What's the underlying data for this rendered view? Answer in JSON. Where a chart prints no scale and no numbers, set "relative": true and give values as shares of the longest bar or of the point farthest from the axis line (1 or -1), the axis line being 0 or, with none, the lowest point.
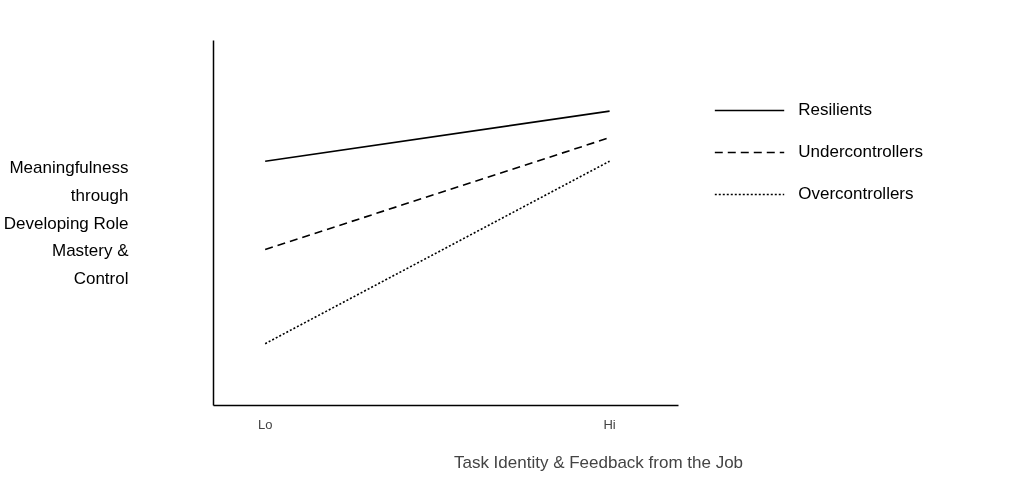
{
  "chart_data": {
    "type": "line",
    "relative": true,
    "xlabel": "Task Identity & Feedback from the Job",
    "ylabel": "Meaningfulness through Developing Role Mastery & Control",
    "categories": [
      "Lo",
      "Hi"
    ],
    "grid": false,
    "legend": "top right",
    "marker": "none",
    "series": [
      {
        "name": "Resilients",
        "color": "#000000",
        "line_style": "solid",
        "values": [
          0.83,
          1.0
        ]
      },
      {
        "name": "Undercontrollers",
        "color": "#000000",
        "line_style": "dashed",
        "values": [
          0.53,
          0.91
        ]
      },
      {
        "name": "Overcontrollers",
        "color": "#000000",
        "line_style": "dotted",
        "values": [
          0.21,
          0.83
        ]
      }
    ]
  }
}
